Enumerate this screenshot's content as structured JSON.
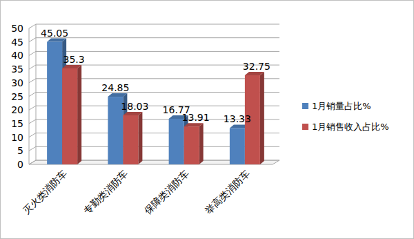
{
  "chart_data": {
    "type": "bar",
    "categories": [
      "灭火类消防车",
      "专勤类消防车",
      "保障类消防车",
      "举高类消防车"
    ],
    "series": [
      {
        "name": "1月销量占比%",
        "color": "#4f81bd",
        "values": [
          45.05,
          24.85,
          16.77,
          13.33
        ]
      },
      {
        "name": "1月销售收入占比%",
        "color": "#c0504d",
        "values": [
          35.3,
          18.03,
          13.91,
          32.75
        ]
      }
    ],
    "ylim": [
      0,
      50
    ],
    "yticks": [
      0,
      5,
      10,
      15,
      20,
      25,
      30,
      35,
      40,
      45,
      50
    ],
    "grid": true,
    "legend": "right",
    "data_labels": true
  }
}
